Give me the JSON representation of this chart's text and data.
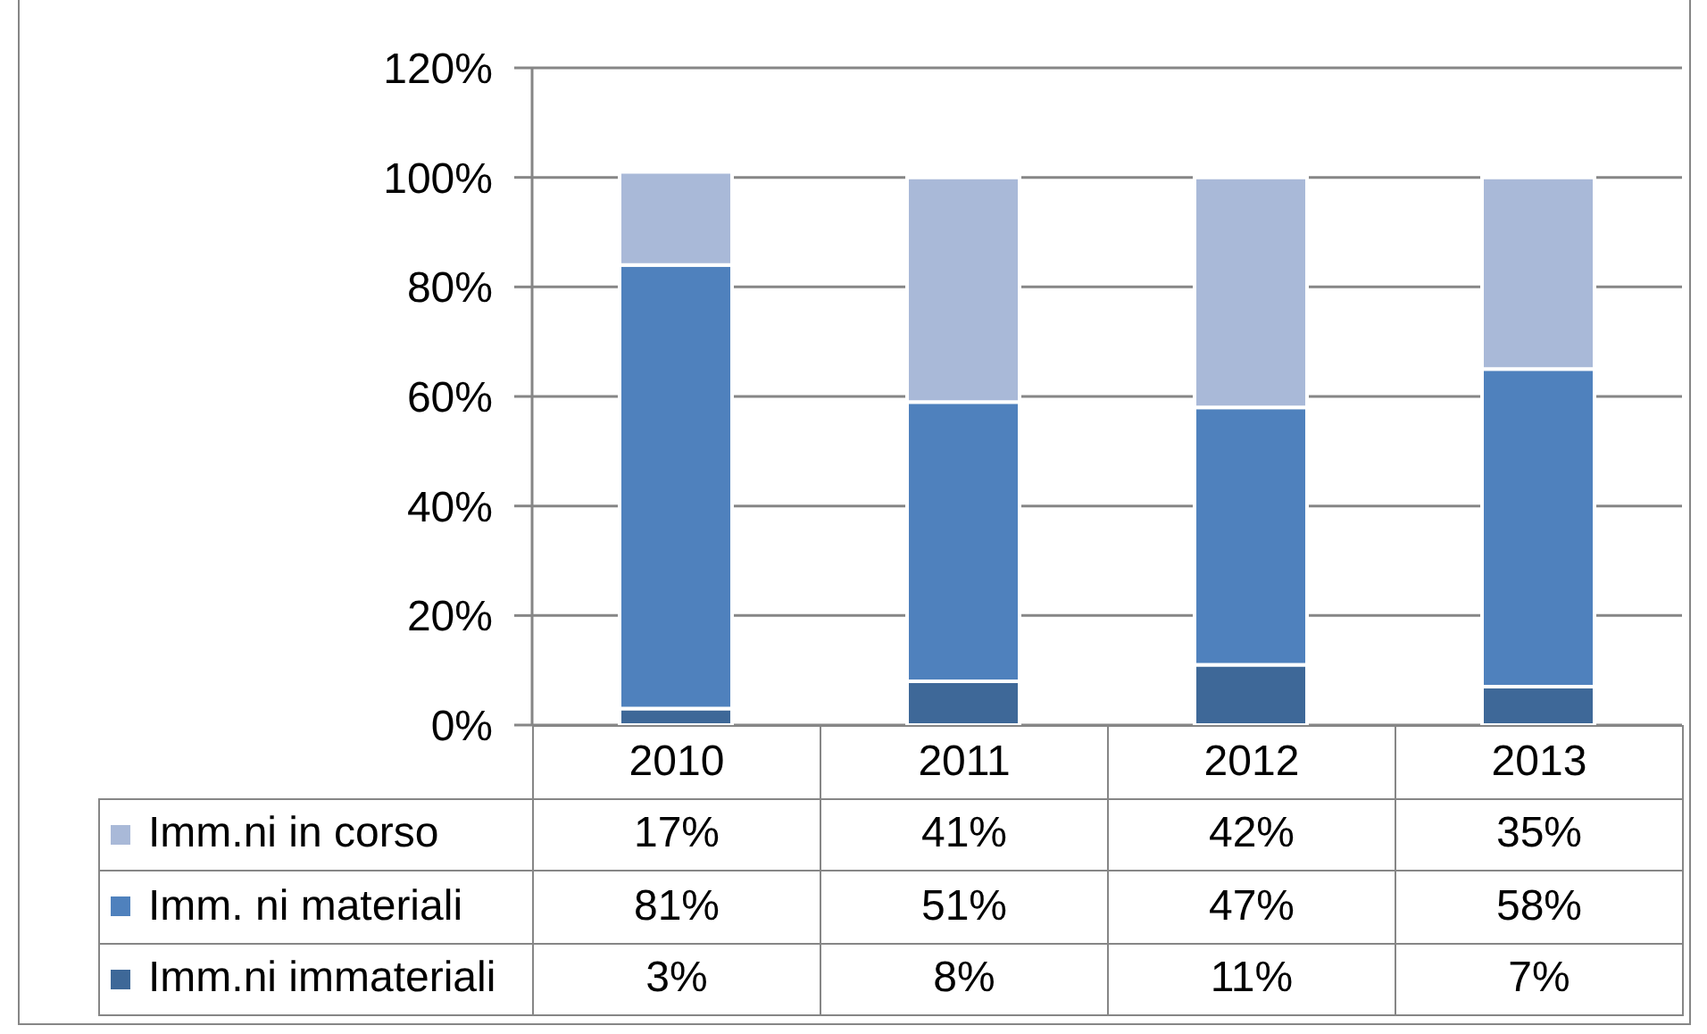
{
  "chart_data": {
    "type": "bar",
    "stacked": true,
    "categories": [
      "2010",
      "2011",
      "2012",
      "2013"
    ],
    "series": [
      {
        "name": "Imm.ni immateriali",
        "color": "#3e6898",
        "values": [
          3,
          8,
          11,
          7
        ],
        "value_labels": [
          "3%",
          "8%",
          "11%",
          "7%"
        ]
      },
      {
        "name": "Imm. ni materiali",
        "color": "#4f81bd",
        "values": [
          81,
          51,
          47,
          58
        ],
        "value_labels": [
          "81%",
          "51%",
          "47%",
          "58%"
        ]
      },
      {
        "name": "Imm.ni in corso",
        "color": "#a9b9d8",
        "values": [
          17,
          41,
          42,
          35
        ],
        "value_labels": [
          "17%",
          "41%",
          "42%",
          "35%"
        ]
      }
    ],
    "ylim": [
      0,
      120
    ],
    "yticks": [
      {
        "value": 0,
        "label": "0%"
      },
      {
        "value": 20,
        "label": "20%"
      },
      {
        "value": 40,
        "label": "40%"
      },
      {
        "value": 60,
        "label": "60%"
      },
      {
        "value": 80,
        "label": "80%"
      },
      {
        "value": 100,
        "label": "100%"
      },
      {
        "value": 120,
        "label": "120%"
      }
    ],
    "grid": "y",
    "legend": "bottom"
  }
}
